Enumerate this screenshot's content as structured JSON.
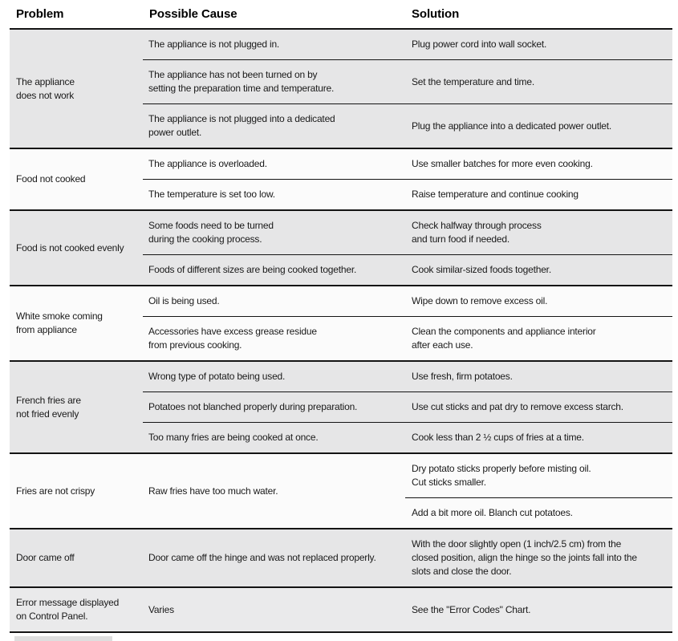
{
  "table": {
    "columns": [
      "Problem",
      "Possible Cause",
      "Solution"
    ],
    "colors": {
      "row_shade": "#e6e6e7",
      "row_shade_light": "#eaeaeb",
      "row_white": "#fbfbfb",
      "line": "#141414",
      "text": "#1a1a1a"
    },
    "groups": [
      {
        "problem": "The appliance\ndoes not work",
        "shade": "gray",
        "rows": [
          {
            "cause": "The appliance is not plugged in.",
            "solution": "Plug power cord into wall socket."
          },
          {
            "cause": "The appliance has not been turned on by\nsetting the preparation time and temperature.",
            "solution": "Set the temperature and time."
          },
          {
            "cause": "The appliance is not plugged into a dedicated\npower outlet.",
            "solution": "Plug the appliance into a dedicated power outlet."
          }
        ]
      },
      {
        "problem": "Food not cooked",
        "shade": "white",
        "rows": [
          {
            "cause": "The appliance is overloaded.",
            "solution": "Use smaller batches for more even cooking."
          },
          {
            "cause": "The temperature is set too low.",
            "solution": "Raise temperature and continue cooking"
          }
        ]
      },
      {
        "problem": "Food is not cooked evenly",
        "shade": "gray",
        "rows": [
          {
            "cause": "Some foods need to be turned\nduring the cooking process.",
            "solution": "Check halfway through process\nand turn food if needed."
          },
          {
            "cause": "Foods of different sizes are being cooked together.",
            "solution": "Cook similar-sized foods together."
          }
        ]
      },
      {
        "problem": "White smoke coming\nfrom appliance",
        "shade": "white",
        "rows": [
          {
            "cause": "Oil is being used.",
            "solution": "Wipe down to remove excess oil."
          },
          {
            "cause": "Accessories have excess grease residue\nfrom previous cooking.",
            "solution": "Clean the components and appliance interior\nafter each use."
          }
        ]
      },
      {
        "problem": "French fries are\nnot fried evenly",
        "shade": "gray",
        "rows": [
          {
            "cause": "Wrong type of potato being used.",
            "solution": "Use fresh, firm potatoes."
          },
          {
            "cause": "Potatoes not blanched properly during preparation.",
            "solution": "Use cut sticks and pat dry to remove excess starch."
          },
          {
            "cause": "Too many fries are being cooked at once.",
            "solution": "Cook less than 2 ½ cups of fries at a time."
          }
        ]
      },
      {
        "problem": "Fries are not crispy",
        "shade": "white",
        "cause_span": "Raw fries have too much water.",
        "rows": [
          {
            "solution": "Dry potato sticks properly before misting oil.\nCut sticks smaller."
          },
          {
            "solution": "Add a bit more oil. Blanch cut potatoes."
          }
        ]
      },
      {
        "problem": "Door came off",
        "shade": "gray",
        "rows": [
          {
            "cause": "Door came off the hinge and was not replaced properly.",
            "solution": "With the door slightly open (1 inch/2.5 cm) from the\nclosed position, align the hinge so the joints fall into the\nslots and close the door."
          }
        ]
      },
      {
        "problem": "Error message displayed\non Control Panel.",
        "shade": "gray-light",
        "rows": [
          {
            "cause": "Varies",
            "solution": "See the \"Error Codes\" Chart."
          }
        ]
      }
    ]
  }
}
